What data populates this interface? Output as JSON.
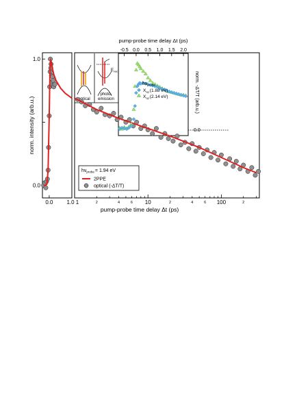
{
  "chart_data": [
    {
      "type": "scatter",
      "panel": "main-linear",
      "ylabel": "norm. intensity (arb.u.)",
      "yticks": [
        "0.0",
        "1.0"
      ],
      "xticks": [
        "0.0",
        "1.0"
      ],
      "xlim": [
        -0.3,
        1.0
      ],
      "ylim": [
        -0.1,
        1.05
      ],
      "xlabel": "pump-probe time delay Δt (ps)",
      "legend": {
        "title": "hν",
        "title_sub": "probe",
        "title_tail": "= 1.94 eV",
        "items": [
          "2PPE",
          "optical (-ΔT/T)"
        ]
      },
      "series": [
        {
          "name": "2PPE",
          "color": "#e02020",
          "x": [
            -0.25,
            -0.15,
            -0.1,
            -0.05,
            0.0,
            0.03,
            0.06,
            0.09,
            0.12,
            0.15,
            0.2,
            0.3,
            0.5,
            0.7,
            1.0
          ],
          "y": [
            0.0,
            0.0,
            0.01,
            0.12,
            0.55,
            0.88,
            0.99,
            0.98,
            0.95,
            0.92,
            0.88,
            0.83,
            0.77,
            0.73,
            0.69
          ]
        },
        {
          "name": "optical (-ΔT/T)",
          "color": "#909090",
          "x": [
            -0.25,
            -0.2,
            -0.15,
            -0.12,
            -0.08,
            -0.05,
            -0.03,
            0.0,
            0.02,
            0.04,
            0.05,
            0.07,
            0.08,
            0.1,
            0.12,
            0.14,
            0.16,
            0.18,
            0.2,
            0.25
          ],
          "y": [
            0.0,
            0.02,
            -0.02,
            0.03,
            0.05,
            0.12,
            0.3,
            0.55,
            0.78,
            0.9,
            1.0,
            0.93,
            0.96,
            0.87,
            0.82,
            0.86,
            0.79,
            0.83,
            0.78,
            0.8
          ]
        }
      ]
    },
    {
      "type": "scatter",
      "panel": "main-log",
      "xscale": "log",
      "xlim": [
        1.0,
        330
      ],
      "xticks": [
        "1",
        "2",
        "4",
        "6",
        "10",
        "2",
        "4",
        "6",
        "100",
        "2"
      ],
      "series": [
        {
          "name": "2PPE",
          "color": "#e02020",
          "x": [
            1,
            2,
            4,
            10,
            20,
            50,
            100,
            200,
            300
          ],
          "y": [
            0.69,
            0.6,
            0.53,
            0.45,
            0.39,
            0.3,
            0.22,
            0.14,
            0.1
          ]
        },
        {
          "name": "optical (-ΔT/T)",
          "color": "#909090",
          "x": [
            1.1,
            1.25,
            1.4,
            1.6,
            1.8,
            2.0,
            2.3,
            2.6,
            3.0,
            3.4,
            3.8,
            4.3,
            5.0,
            5.6,
            6.3,
            7.0,
            8.0,
            9.0,
            10,
            11.5,
            13,
            15,
            17,
            19,
            22,
            25,
            28,
            32,
            36,
            40,
            45,
            50,
            57,
            64,
            72,
            80,
            90,
            100,
            115,
            130,
            145,
            160,
            180,
            200,
            230,
            260,
            290,
            320
          ],
          "y": [
            0.68,
            0.66,
            0.63,
            0.64,
            0.6,
            0.58,
            0.61,
            0.56,
            0.55,
            0.57,
            0.52,
            0.54,
            0.5,
            0.52,
            0.47,
            0.5,
            0.45,
            0.47,
            0.44,
            0.41,
            0.45,
            0.38,
            0.41,
            0.37,
            0.35,
            0.39,
            0.32,
            0.34,
            0.29,
            0.33,
            0.27,
            0.3,
            0.25,
            0.28,
            0.22,
            0.26,
            0.2,
            0.24,
            0.17,
            0.21,
            0.15,
            0.19,
            0.13,
            0.16,
            0.11,
            0.14,
            0.08,
            0.11
          ]
        }
      ]
    },
    {
      "type": "scatter",
      "panel": "inset",
      "xlabel": "pump-probe time delay Δt (ps)",
      "ylabel": "norm. -ΔT/T (arb.u.)",
      "xlim": [
        -0.75,
        2.2
      ],
      "ylim": [
        -0.1,
        1.15
      ],
      "xticks": [
        "-0.5",
        "0.0",
        "0.5",
        "1.0",
        "1.5",
        "2.0"
      ],
      "zero_label": "0.0",
      "legend": {
        "title": "hν",
        "title_sub": "probe",
        "items": [
          "X",
          "X"
        ],
        "item_subs": [
          "ap",
          "ap"
        ],
        "item_tails": [
          "(1.88 eV)",
          "(2.14 eV)"
        ]
      },
      "series": [
        {
          "name": "(1.88 eV)",
          "color": "#5ab4e8",
          "marker": "diamond",
          "x": [
            -0.7,
            -0.6,
            -0.5,
            -0.4,
            -0.3,
            -0.2,
            -0.1,
            -0.05,
            0.0,
            0.05,
            0.1,
            0.15,
            0.2,
            0.3,
            0.4,
            0.5,
            0.6,
            0.7,
            0.8,
            0.9,
            1.0,
            1.1,
            1.2,
            1.3,
            1.4,
            1.5,
            1.6,
            1.7,
            1.8,
            1.9,
            2.0,
            2.1
          ],
          "y": [
            0.0,
            0.02,
            0.01,
            0.0,
            0.02,
            0.05,
            0.15,
            0.35,
            0.55,
            0.65,
            0.68,
            0.7,
            0.69,
            0.7,
            0.69,
            0.68,
            0.67,
            0.66,
            0.65,
            0.64,
            0.62,
            0.61,
            0.6,
            0.58,
            0.57,
            0.56,
            0.55,
            0.54,
            0.53,
            0.52,
            0.51,
            0.5
          ]
        },
        {
          "name": "(2.14 eV)",
          "color": "#9be06a",
          "marker": "triangle",
          "x": [
            -0.7,
            -0.6,
            -0.5,
            -0.4,
            -0.3,
            -0.2,
            -0.1,
            -0.05,
            0.0,
            0.05,
            0.1,
            0.15,
            0.2,
            0.3,
            0.4,
            0.5,
            0.6,
            0.7,
            0.8,
            0.9,
            1.0,
            1.1,
            1.2,
            1.3,
            1.4,
            1.5,
            1.6,
            1.7,
            1.8,
            1.9,
            2.0,
            2.1
          ],
          "y": [
            0.02,
            0.0,
            0.03,
            0.01,
            0.04,
            0.08,
            0.3,
            0.65,
            0.9,
            1.0,
            0.98,
            0.95,
            0.92,
            0.88,
            0.84,
            0.78,
            0.74,
            0.7,
            0.68,
            0.66,
            0.64,
            0.62,
            0.6,
            0.58,
            0.57,
            0.56,
            0.55,
            0.54,
            0.53,
            0.52,
            0.52,
            0.51
          ]
        }
      ]
    }
  ],
  "schematic": {
    "optical_label": "optical",
    "photoemission_label": "photo- emission",
    "photoemission_line1": "photo-",
    "photoemission_line2": "emission",
    "evac_label": "E",
    "evac_sub": "vac"
  }
}
